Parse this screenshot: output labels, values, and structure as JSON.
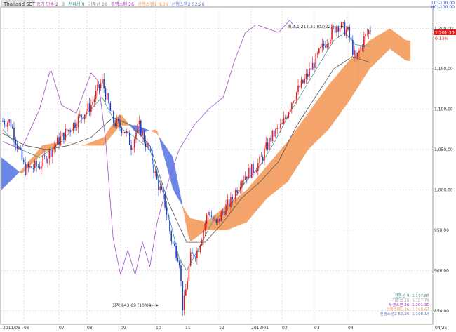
{
  "header": {
    "symbol": "Thailand SET",
    "legend": [
      {
        "text": "종가 단순 2",
        "color": "#b03ab0"
      },
      {
        "text": "3",
        "color": "#7a7a7a"
      },
      {
        "text": "전환선 9",
        "color": "#2a8a8a"
      },
      {
        "text": "기준선 26",
        "color": "#888888"
      },
      {
        "text": "후행스팬 26",
        "color": "#a030c0"
      },
      {
        "text": "선행스팬1 9,26",
        "color": "#f0a060"
      },
      {
        "text": "선행스팬2 52,26",
        "color": "#5a7ac8"
      }
    ],
    "corner_top": "LC:-100.00",
    "corner_bottom": "HC:-100.00"
  },
  "current": {
    "price": "1,201.30",
    "change": "0.13%"
  },
  "annotations": {
    "high": "최고 1,214.31 (03/22)",
    "low": "최저 843.69 (10/04)"
  },
  "bottom_legend": [
    {
      "text": "전환선 9: 1,177.87",
      "color": "#2a8a8a"
    },
    {
      "text": "기준선 26: 1,157.76",
      "color": "#888888"
    },
    {
      "text": "후행스팬 26: 1,201.30",
      "color": "#a030c0"
    },
    {
      "text": "선행스팬1 26: 1,188.67",
      "color": "#f0a060"
    },
    {
      "text": "선행스팬2 52,26: 1,198.14",
      "color": "#5a7ac8"
    }
  ],
  "colors": {
    "up": "#e02020",
    "down": "#2040c0",
    "tenkan": "#2a8a8a",
    "kijun": "#555555",
    "chikou": "#a050c8",
    "cloud_bull": "#f4a46a",
    "cloud_bear": "#6a86e6",
    "grid": "#c8c8c8"
  },
  "chart_data": {
    "type": "candlestick",
    "y_ticks": [
      850,
      900,
      950,
      1000,
      1050,
      1100,
      1150,
      1200
    ],
    "y_tick_labels": [
      "850,00",
      "900,00",
      "950,00",
      "1,000,00",
      "1,050,00",
      "1,100,00",
      "1,150,00",
      "1,200,00"
    ],
    "ylim": [
      835,
      1225
    ],
    "x_ticks": [
      "2011/05",
      "06",
      "07",
      "08",
      "09",
      "10",
      "11",
      "12",
      "2012/01",
      "02",
      "03",
      "04",
      "04/25"
    ],
    "price_path": [
      [
        0,
        1085
      ],
      [
        0.02,
        1085
      ],
      [
        0.06,
        1025
      ],
      [
        0.1,
        1030
      ],
      [
        0.15,
        1060
      ],
      [
        0.18,
        1075
      ],
      [
        0.24,
        1105
      ],
      [
        0.27,
        1135
      ],
      [
        0.3,
        1085
      ],
      [
        0.33,
        1075
      ],
      [
        0.35,
        1055
      ],
      [
        0.37,
        1080
      ],
      [
        0.4,
        1045
      ],
      [
        0.42,
        1010
      ],
      [
        0.44,
        985
      ],
      [
        0.46,
        935
      ],
      [
        0.48,
        915
      ],
      [
        0.49,
        850
      ],
      [
        0.51,
        915
      ],
      [
        0.53,
        925
      ],
      [
        0.56,
        975
      ],
      [
        0.58,
        955
      ],
      [
        0.6,
        975
      ],
      [
        0.62,
        985
      ],
      [
        0.65,
        1015
      ],
      [
        0.68,
        1025
      ],
      [
        0.7,
        1035
      ],
      [
        0.73,
        1065
      ],
      [
        0.76,
        1080
      ],
      [
        0.79,
        1115
      ],
      [
        0.82,
        1135
      ],
      [
        0.85,
        1160
      ],
      [
        0.88,
        1185
      ],
      [
        0.91,
        1205
      ],
      [
        0.94,
        1195
      ],
      [
        0.96,
        1160
      ],
      [
        0.98,
        1185
      ],
      [
        1.0,
        1200
      ]
    ],
    "tenkan_path": [
      [
        0,
        1075
      ],
      [
        0.05,
        1050
      ],
      [
        0.1,
        1040
      ],
      [
        0.16,
        1060
      ],
      [
        0.22,
        1090
      ],
      [
        0.27,
        1115
      ],
      [
        0.31,
        1080
      ],
      [
        0.36,
        1065
      ],
      [
        0.4,
        1050
      ],
      [
        0.44,
        990
      ],
      [
        0.48,
        915
      ],
      [
        0.5,
        900
      ],
      [
        0.53,
        925
      ],
      [
        0.57,
        960
      ],
      [
        0.61,
        975
      ],
      [
        0.66,
        1010
      ],
      [
        0.7,
        1030
      ],
      [
        0.74,
        1060
      ],
      [
        0.78,
        1095
      ],
      [
        0.82,
        1125
      ],
      [
        0.86,
        1155
      ],
      [
        0.9,
        1185
      ],
      [
        0.93,
        1195
      ],
      [
        0.96,
        1180
      ],
      [
        1.0,
        1178
      ]
    ],
    "kijun_path": [
      [
        0,
        1070
      ],
      [
        0.06,
        1055
      ],
      [
        0.12,
        1050
      ],
      [
        0.18,
        1055
      ],
      [
        0.24,
        1065
      ],
      [
        0.3,
        1090
      ],
      [
        0.35,
        1080
      ],
      [
        0.4,
        1055
      ],
      [
        0.45,
        985
      ],
      [
        0.5,
        935
      ],
      [
        0.55,
        935
      ],
      [
        0.6,
        960
      ],
      [
        0.65,
        990
      ],
      [
        0.7,
        1010
      ],
      [
        0.75,
        1035
      ],
      [
        0.8,
        1080
      ],
      [
        0.85,
        1115
      ],
      [
        0.9,
        1150
      ],
      [
        0.95,
        1165
      ],
      [
        1.0,
        1158
      ]
    ],
    "chikou_path": [
      [
        0,
        1060
      ],
      [
        0.05,
        1050
      ],
      [
        0.1,
        1100
      ],
      [
        0.13,
        1150
      ],
      [
        0.16,
        1105
      ],
      [
        0.2,
        1095
      ],
      [
        0.24,
        1145
      ],
      [
        0.26,
        1135
      ],
      [
        0.28,
        1060
      ],
      [
        0.3,
        940
      ],
      [
        0.32,
        895
      ],
      [
        0.34,
        925
      ],
      [
        0.36,
        895
      ],
      [
        0.38,
        935
      ],
      [
        0.4,
        905
      ],
      [
        0.42,
        960
      ],
      [
        0.45,
        1010
      ],
      [
        0.48,
        1050
      ],
      [
        0.52,
        1080
      ],
      [
        0.56,
        1100
      ],
      [
        0.6,
        1115
      ],
      [
        0.63,
        1160
      ],
      [
        0.66,
        1195
      ],
      [
        0.69,
        1205
      ],
      [
        0.72,
        1200
      ],
      [
        0.75,
        1195
      ],
      [
        0.78,
        1210
      ],
      [
        0.8,
        1200
      ]
    ],
    "cloud_a": [
      [
        0.0,
        1000
      ],
      [
        0.05,
        1025
      ],
      [
        0.1,
        1055
      ],
      [
        0.15,
        1060
      ],
      [
        0.2,
        1055
      ],
      [
        0.25,
        1065
      ],
      [
        0.29,
        1095
      ],
      [
        0.33,
        1070
      ],
      [
        0.38,
        1075
      ],
      [
        0.42,
        1000
      ],
      [
        0.46,
        965
      ],
      [
        0.5,
        960
      ],
      [
        0.55,
        980
      ],
      [
        0.6,
        1000
      ],
      [
        0.65,
        1030
      ],
      [
        0.7,
        1060
      ],
      [
        0.75,
        1095
      ],
      [
        0.8,
        1130
      ],
      [
        0.85,
        1160
      ],
      [
        0.9,
        1185
      ],
      [
        0.95,
        1200
      ],
      [
        0.99,
        1185
      ]
    ],
    "cloud_b": [
      [
        0.0,
        1040
      ],
      [
        0.05,
        1020
      ],
      [
        0.1,
        1045
      ],
      [
        0.15,
        1060
      ],
      [
        0.2,
        1055
      ],
      [
        0.25,
        1055
      ],
      [
        0.29,
        1080
      ],
      [
        0.33,
        1080
      ],
      [
        0.38,
        1070
      ],
      [
        0.42,
        1040
      ],
      [
        0.46,
        935
      ],
      [
        0.5,
        950
      ],
      [
        0.55,
        950
      ],
      [
        0.6,
        960
      ],
      [
        0.65,
        990
      ],
      [
        0.7,
        1010
      ],
      [
        0.75,
        1050
      ],
      [
        0.8,
        1075
      ],
      [
        0.85,
        1110
      ],
      [
        0.9,
        1150
      ],
      [
        0.95,
        1175
      ],
      [
        0.99,
        1160
      ]
    ]
  }
}
